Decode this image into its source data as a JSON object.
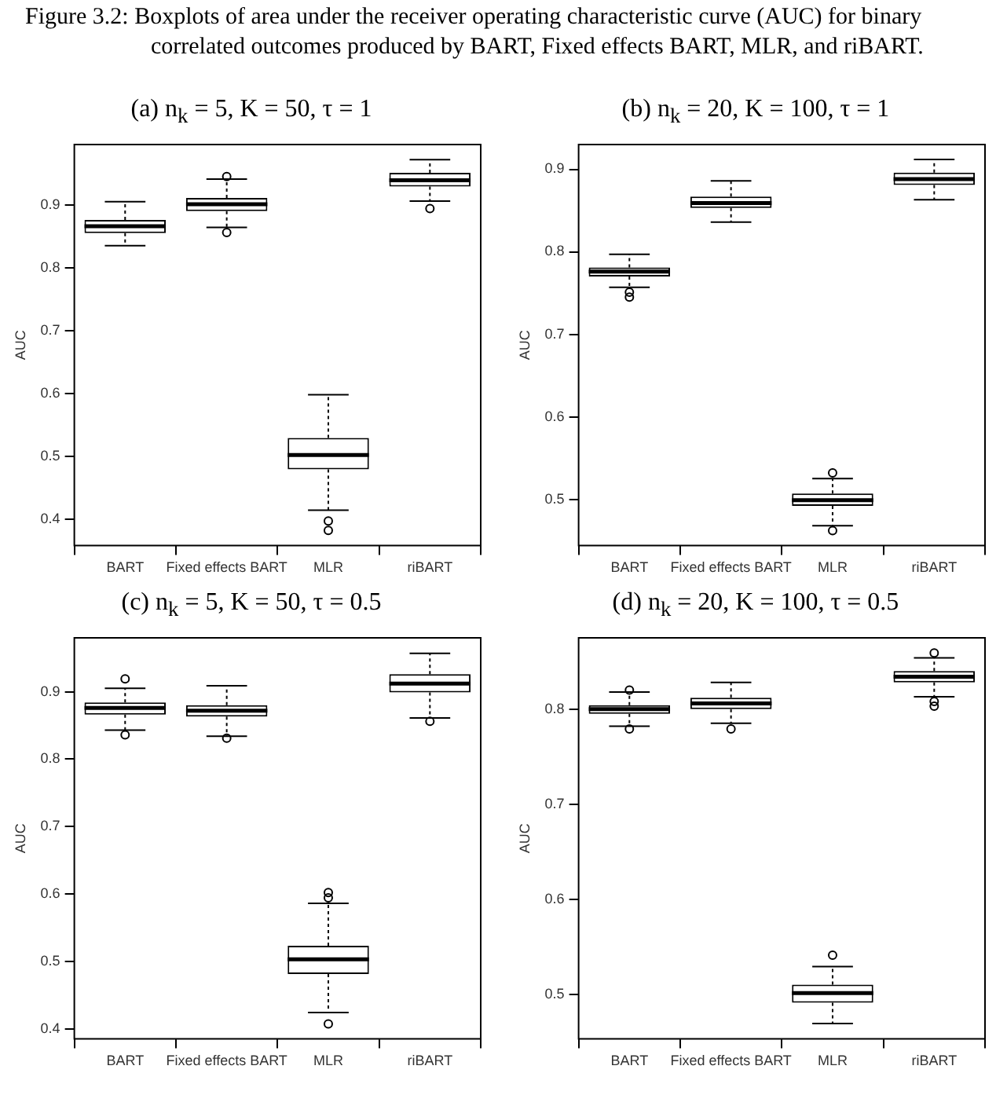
{
  "chart_data": [
    {
      "type": "box",
      "title": "(a) n$_{k}$ = 5, K = 50, τ = 1",
      "ylabel": "AUC",
      "annotations": [
        "Figure 3.2: Boxplots of area under the receiver operating characteristic curve (AUC) for binary correlated outcomes produced by BART, Fixed effects BART, MLR, and riBART."
      ],
      "categories": [
        "BART",
        "Fixed effects BART",
        "MLR",
        "riBART"
      ],
      "boxes": [
        {
          "low": 0.835,
          "q1": 0.855,
          "median": 0.866,
          "q3": 0.876,
          "high": 0.905
        },
        {
          "low": 0.864,
          "q1": 0.89,
          "median": 0.901,
          "q3": 0.911,
          "high": 0.941,
          "outliers": [
            0.945,
            0.856
          ]
        },
        {
          "low": 0.414,
          "q1": 0.479,
          "median": 0.502,
          "q3": 0.529,
          "high": 0.598,
          "outliers": [
            0.397,
            0.382
          ]
        },
        {
          "low": 0.906,
          "q1": 0.929,
          "median": 0.939,
          "q3": 0.951,
          "high": 0.972,
          "outliers": [
            0.894
          ]
        }
      ],
      "ylim": [
        0.358,
        0.996
      ],
      "yticks": [
        0.4,
        0.5,
        0.6,
        0.7,
        0.8,
        0.9
      ]
    },
    {
      "type": "box",
      "title": "(b) n$_{k}$ = 20, K = 100, τ = 1",
      "ylabel": "AUC",
      "categories": [
        "BART",
        "Fixed effects BART",
        "MLR",
        "riBART"
      ],
      "boxes": [
        {
          "low": 0.757,
          "q1": 0.77,
          "median": 0.776,
          "q3": 0.781,
          "high": 0.797,
          "outliers": [
            0.751,
            0.745
          ]
        },
        {
          "low": 0.836,
          "q1": 0.853,
          "median": 0.859,
          "q3": 0.867,
          "high": 0.886
        },
        {
          "low": 0.468,
          "q1": 0.492,
          "median": 0.499,
          "q3": 0.507,
          "high": 0.525,
          "outliers": [
            0.532,
            0.462
          ]
        },
        {
          "low": 0.863,
          "q1": 0.881,
          "median": 0.888,
          "q3": 0.896,
          "high": 0.912
        }
      ],
      "ylim": [
        0.444,
        0.93
      ],
      "yticks": [
        0.5,
        0.6,
        0.7,
        0.8,
        0.9
      ]
    },
    {
      "type": "box",
      "title": "(c) n$_{k}$ = 5, K = 50, τ = 0.5",
      "ylabel": "AUC",
      "categories": [
        "BART",
        "Fixed effects BART",
        "MLR",
        "riBART"
      ],
      "boxes": [
        {
          "low": 0.843,
          "q1": 0.866,
          "median": 0.876,
          "q3": 0.884,
          "high": 0.905,
          "outliers": [
            0.919,
            0.836
          ]
        },
        {
          "low": 0.834,
          "q1": 0.863,
          "median": 0.872,
          "q3": 0.88,
          "high": 0.909,
          "outliers": [
            0.831
          ]
        },
        {
          "low": 0.424,
          "q1": 0.481,
          "median": 0.503,
          "q3": 0.523,
          "high": 0.586,
          "outliers": [
            0.602,
            0.594,
            0.407
          ]
        },
        {
          "low": 0.861,
          "q1": 0.899,
          "median": 0.912,
          "q3": 0.926,
          "high": 0.957,
          "outliers": [
            0.856
          ]
        }
      ],
      "ylim": [
        0.385,
        0.98
      ],
      "yticks": [
        0.4,
        0.5,
        0.6,
        0.7,
        0.8,
        0.9
      ]
    },
    {
      "type": "box",
      "title": "(d) n$_{k}$ = 20, K = 100, τ = 0.5",
      "ylabel": "AUC",
      "categories": [
        "BART",
        "Fixed effects BART",
        "MLR",
        "riBART"
      ],
      "boxes": [
        {
          "low": 0.782,
          "q1": 0.795,
          "median": 0.8,
          "q3": 0.804,
          "high": 0.818,
          "outliers": [
            0.82,
            0.779
          ]
        },
        {
          "low": 0.785,
          "q1": 0.8,
          "median": 0.806,
          "q3": 0.812,
          "high": 0.828,
          "outliers": [
            0.779
          ]
        },
        {
          "low": 0.469,
          "q1": 0.491,
          "median": 0.501,
          "q3": 0.51,
          "high": 0.529,
          "outliers": [
            0.541
          ]
        },
        {
          "low": 0.813,
          "q1": 0.828,
          "median": 0.834,
          "q3": 0.84,
          "high": 0.854,
          "outliers": [
            0.859,
            0.808,
            0.803
          ]
        }
      ],
      "ylim": [
        0.453,
        0.875
      ],
      "yticks": [
        0.5,
        0.6,
        0.7,
        0.8
      ]
    }
  ]
}
